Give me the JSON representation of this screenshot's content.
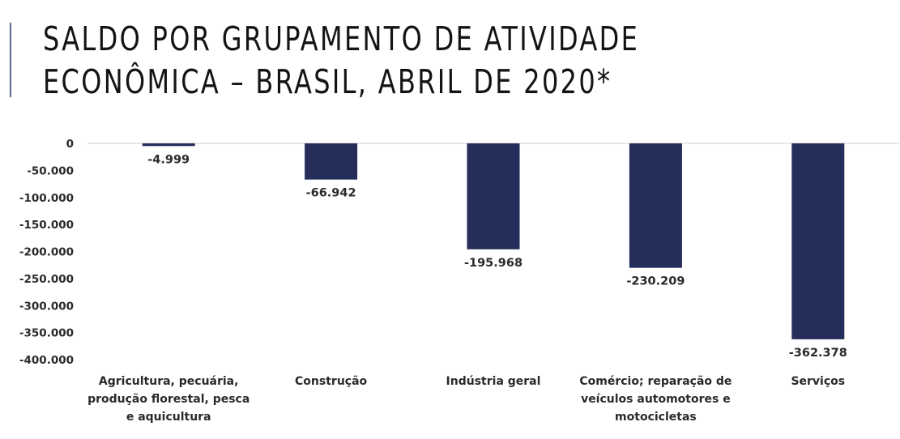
{
  "title": "SALDO POR GRUPAMENTO DE ATIVIDADE ECONÔMICA – BRASIL, ABRIL DE 2020*",
  "colors": {
    "bar": "#252d5a",
    "axis_text": "#2a2a2a",
    "baseline": "#d0d0d0",
    "accent": "#5a6a8a"
  },
  "chart_data": {
    "type": "bar",
    "title": "SALDO POR GRUPAMENTO DE ATIVIDADE ECONÔMICA – BRASIL, ABRIL DE 2020*",
    "xlabel": "",
    "ylabel": "",
    "ylim": [
      -400000,
      0
    ],
    "grid": false,
    "legend": "none",
    "yticks": [
      "0",
      "-50.000",
      "-100.000",
      "-150.000",
      "-200.000",
      "-250.000",
      "-300.000",
      "-350.000",
      "-400.000"
    ],
    "ytick_values": [
      0,
      -50000,
      -100000,
      -150000,
      -200000,
      -250000,
      -300000,
      -350000,
      -400000
    ],
    "categories": [
      [
        "Agricultura, pecuária,",
        "produção florestal, pesca",
        "e aquicultura"
      ],
      [
        "Construção"
      ],
      [
        "Indústria geral"
      ],
      [
        "Comércio; reparação de",
        "veículos automotores e",
        "motocicletas"
      ],
      [
        "Serviços"
      ]
    ],
    "values": [
      -4999,
      -66942,
      -195968,
      -230209,
      -362378
    ],
    "data_labels": [
      "-4.999",
      "-66.942",
      "-195.968",
      "-230.209",
      "-362.378"
    ]
  }
}
